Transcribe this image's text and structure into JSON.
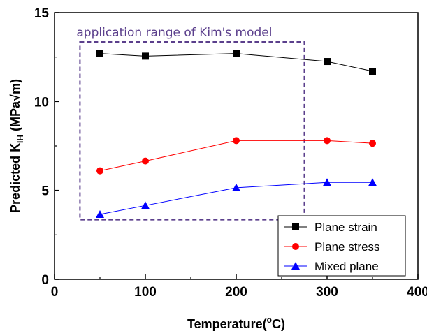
{
  "chart_data": {
    "type": "line",
    "xlabel": "Temperature(",
    "xlabel_sup": "o",
    "xlabel_unit": "C)",
    "ylabel": "Predicted K",
    "ylabel_sub": "IH",
    "ylabel_unit": " (MPa√m)",
    "xlim": [
      0,
      400
    ],
    "ylim": [
      0,
      15
    ],
    "xticks": [
      0,
      100,
      200,
      300,
      400
    ],
    "yticks": [
      0,
      5,
      10,
      15
    ],
    "x": [
      50,
      100,
      200,
      300,
      350
    ],
    "series": [
      {
        "name": "Plane strain",
        "values": [
          12.7,
          12.55,
          12.7,
          12.25,
          11.7
        ],
        "color": "#000000",
        "marker": "square"
      },
      {
        "name": "Plane stress",
        "values": [
          6.1,
          6.65,
          7.8,
          7.8,
          7.65
        ],
        "color": "#ff0000",
        "marker": "circle"
      },
      {
        "name": "Mixed plane",
        "values": [
          3.65,
          4.15,
          5.15,
          5.45,
          5.45
        ],
        "color": "#0000ff",
        "marker": "triangle"
      }
    ],
    "legend_position": "bottom-right",
    "grid": false,
    "annotation": {
      "text": "application range of Kim's model",
      "color": "#5b3f8c",
      "x_range": [
        28,
        275
      ],
      "y_range": [
        3.35,
        13.35
      ]
    }
  }
}
